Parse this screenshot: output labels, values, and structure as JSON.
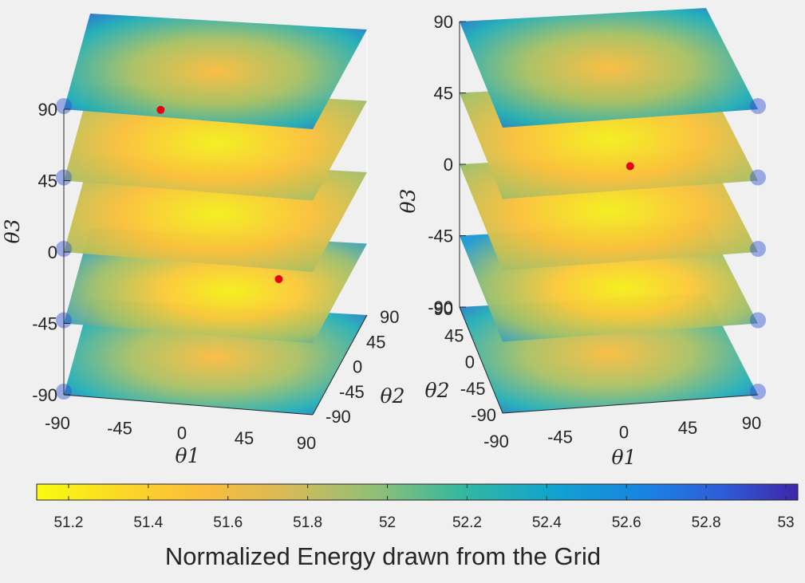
{
  "chart_data": [
    {
      "type": "heatmap",
      "subtype": "3d-slices",
      "title": "",
      "xlabel": "θ1",
      "ylabel": "θ2",
      "zlabel": "θ3",
      "x_ticks": [
        "-90",
        "-45",
        "0",
        "45",
        "90"
      ],
      "y_ticks": [
        "90",
        "45",
        "0",
        "-45",
        "-90"
      ],
      "z_ticks": [
        "-90",
        "-45",
        "0",
        "45",
        "90"
      ],
      "xlim": [
        -90,
        90
      ],
      "ylim": [
        -90,
        90
      ],
      "zlim": [
        -90,
        90
      ],
      "slices_at_theta3": [
        -90,
        -45,
        0,
        45,
        90
      ],
      "markers": [
        {
          "theta1": -30,
          "theta2": 20,
          "theta3": 70,
          "color": "#e8000b"
        },
        {
          "theta1": 50,
          "theta2": 10,
          "theta3": -35,
          "color": "#e8000b"
        }
      ]
    },
    {
      "type": "heatmap",
      "subtype": "3d-slices",
      "title": "",
      "xlabel": "θ1",
      "ylabel": "θ2",
      "zlabel": "θ3",
      "x_ticks": [
        "-90",
        "-45",
        "0",
        "45",
        "90"
      ],
      "y_ticks": [
        "-90",
        "-45",
        "0",
        "45",
        "90"
      ],
      "z_ticks": [
        "-90",
        "-45",
        "0",
        "45",
        "90"
      ],
      "xlim": [
        -90,
        90
      ],
      "ylim": [
        -90,
        90
      ],
      "zlim": [
        -90,
        90
      ],
      "slices_at_theta3": [
        -90,
        -45,
        0,
        45,
        90
      ],
      "markers": [
        {
          "theta1": 15,
          "theta2": -10,
          "theta3": 30,
          "color": "#e8000b"
        }
      ]
    }
  ],
  "colorbar": {
    "title": "Normalized Energy drawn from the Grid",
    "ticks": [
      "51.2",
      "51.4",
      "51.6",
      "51.8",
      "52",
      "52.2",
      "52.4",
      "52.6",
      "52.8",
      "53"
    ],
    "tick_values": [
      51.2,
      51.4,
      51.6,
      51.8,
      52.0,
      52.2,
      52.4,
      52.6,
      52.8,
      53.0
    ],
    "range": [
      51.12,
      53.03
    ],
    "colormap": "parula-reversed",
    "colors": [
      "#f9fb0e",
      "#fbbc3d",
      "#d7ba58",
      "#8cbf77",
      "#33b7a0",
      "#0fa3cf",
      "#1a82e1",
      "#2d5dd8",
      "#3e26a8"
    ]
  }
}
